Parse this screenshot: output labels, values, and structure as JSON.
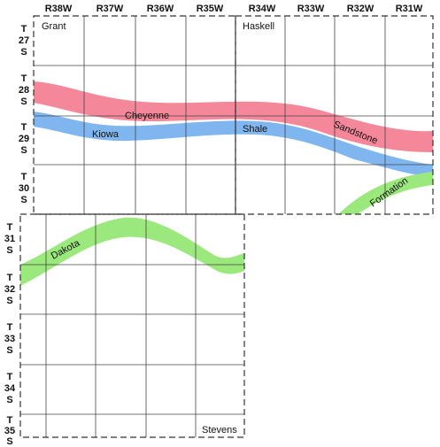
{
  "range_labels": [
    "R38W",
    "R37W",
    "R36W",
    "R35W",
    "R34W",
    "R33W",
    "R32W",
    "R31W"
  ],
  "township_labels": [
    {
      "t": "T",
      "n": "27",
      "s": "S"
    },
    {
      "t": "T",
      "n": "28",
      "s": "S"
    },
    {
      "t": "T",
      "n": "29",
      "s": "S"
    },
    {
      "t": "T",
      "n": "30",
      "s": "S"
    },
    {
      "t": "T",
      "n": "31",
      "s": "S"
    },
    {
      "t": "T",
      "n": "32",
      "s": "S"
    },
    {
      "t": "T",
      "n": "33",
      "s": "S"
    },
    {
      "t": "T",
      "n": "34",
      "s": "S"
    },
    {
      "t": "T",
      "n": "35",
      "s": "S"
    }
  ],
  "counties": {
    "grant": "Grant",
    "haskell": "Haskell",
    "stevens": "Stevens"
  },
  "formations": {
    "cheyenne": "Cheyenne",
    "sandstone": "Sandstone",
    "kiowa": "Kiowa",
    "shale": "Shale",
    "dakota": "Dakota",
    "formation": "Formation"
  },
  "colors": {
    "cheyenne_sandstone": "#f4879a",
    "kiowa_shale": "#7fb6f0",
    "dakota_formation": "#9be87c"
  }
}
